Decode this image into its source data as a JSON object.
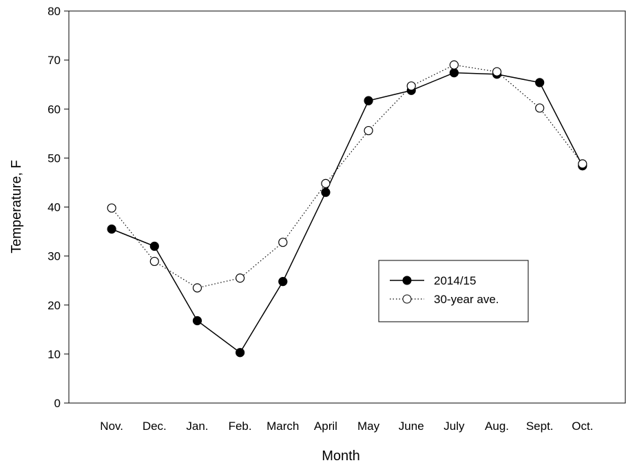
{
  "chart_data": {
    "type": "line",
    "x_label": "Month",
    "y_label": "Temperature, F",
    "categories": [
      "Nov.",
      "Dec.",
      "Jan.",
      "Feb.",
      "March",
      "April",
      "May",
      "June",
      "July",
      "Aug.",
      "Sept.",
      "Oct."
    ],
    "series": [
      {
        "name": "2014/15",
        "color": "#000000",
        "marker": "filled",
        "values": [
          35.5,
          32,
          16.8,
          10.3,
          24.8,
          43,
          61.7,
          63.8,
          67.4,
          67.1,
          65.4,
          48.4
        ]
      },
      {
        "name": "30-year ave.",
        "color": "#000000",
        "marker": "open",
        "values": [
          39.8,
          28.9,
          23.5,
          25.5,
          32.8,
          44.8,
          55.6,
          64.7,
          69,
          67.6,
          60.2,
          48.8
        ]
      }
    ],
    "ylim": [
      0,
      80
    ],
    "yticks": [
      0,
      10,
      20,
      30,
      40,
      50,
      60,
      70,
      80
    ],
    "grid": false
  }
}
